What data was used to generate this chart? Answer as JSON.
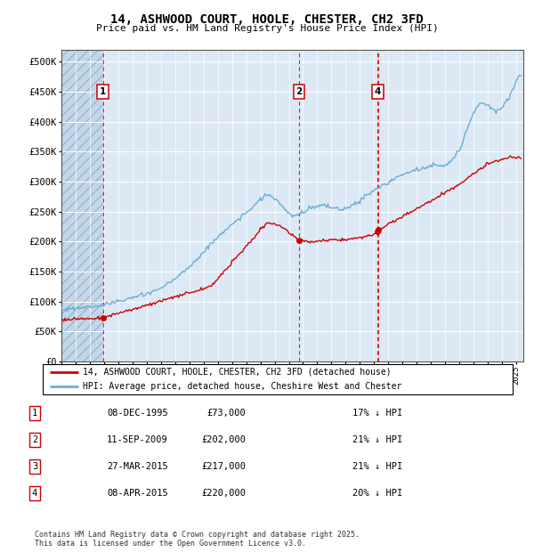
{
  "title": "14, ASHWOOD COURT, HOOLE, CHESTER, CH2 3FD",
  "subtitle": "Price paid vs. HM Land Registry's House Price Index (HPI)",
  "hpi_color": "#6baed6",
  "price_color": "#cc0000",
  "background_color": "#dce9f5",
  "ylim": [
    0,
    520000
  ],
  "yticks": [
    0,
    50000,
    100000,
    150000,
    200000,
    250000,
    300000,
    350000,
    400000,
    450000,
    500000
  ],
  "ytick_labels": [
    "£0",
    "£50K",
    "£100K",
    "£150K",
    "£200K",
    "£250K",
    "£300K",
    "£350K",
    "£400K",
    "£450K",
    "£500K"
  ],
  "hpi_anchors_t": [
    1993.0,
    1994.0,
    1995.0,
    1996.0,
    1997.0,
    1998.0,
    1999.0,
    2000.0,
    2001.0,
    2002.0,
    2003.0,
    2004.0,
    2005.0,
    2006.0,
    2007.0,
    2007.5,
    2008.0,
    2008.5,
    2009.0,
    2009.5,
    2010.0,
    2010.5,
    2011.0,
    2011.5,
    2012.0,
    2012.5,
    2013.0,
    2013.5,
    2014.0,
    2014.5,
    2015.0,
    2015.5,
    2016.0,
    2016.5,
    2017.0,
    2017.5,
    2018.0,
    2018.5,
    2019.0,
    2019.5,
    2020.0,
    2020.5,
    2021.0,
    2021.5,
    2022.0,
    2022.5,
    2023.0,
    2023.5,
    2024.0,
    2024.5,
    2025.2
  ],
  "hpi_anchors_v": [
    87000,
    89000,
    91000,
    95000,
    100000,
    106000,
    113000,
    122000,
    138000,
    158000,
    182000,
    208000,
    228000,
    248000,
    270000,
    278000,
    272000,
    260000,
    245000,
    242000,
    250000,
    257000,
    258000,
    260000,
    257000,
    254000,
    256000,
    261000,
    268000,
    278000,
    285000,
    292000,
    298000,
    306000,
    312000,
    316000,
    320000,
    322000,
    325000,
    328000,
    326000,
    335000,
    355000,
    385000,
    415000,
    432000,
    428000,
    418000,
    422000,
    440000,
    478000
  ],
  "price_anchors_t": [
    1993.0,
    1995.92,
    2003.5,
    2007.5,
    2008.5,
    2009.7,
    2010.5,
    2013.5,
    2014.8,
    2015.21,
    2015.3,
    2018.0,
    2021.0,
    2023.0,
    2024.5,
    2025.2
  ],
  "price_anchors_v": [
    70000,
    73000,
    125000,
    232000,
    225000,
    202000,
    200000,
    205000,
    210000,
    217000,
    220000,
    255000,
    295000,
    330000,
    340000,
    340000
  ],
  "trans_t": [
    1995.92,
    2009.71,
    2015.23,
    2015.27
  ],
  "trans_v": [
    73000,
    202000,
    217000,
    220000
  ],
  "trans_labels": [
    "1",
    "2",
    "3",
    "4"
  ],
  "shown_label_idx": [
    0,
    1,
    3
  ],
  "legend_line1": "14, ASHWOOD COURT, HOOLE, CHESTER, CH2 3FD (detached house)",
  "legend_line2": "HPI: Average price, detached house, Cheshire West and Chester",
  "table_rows": [
    [
      "1",
      "08-DEC-1995",
      "£73,000",
      "17% ↓ HPI"
    ],
    [
      "2",
      "11-SEP-2009",
      "£202,000",
      "21% ↓ HPI"
    ],
    [
      "3",
      "27-MAR-2015",
      "£217,000",
      "21% ↓ HPI"
    ],
    [
      "4",
      "08-APR-2015",
      "£220,000",
      "20% ↓ HPI"
    ]
  ],
  "footer": "Contains HM Land Registry data © Crown copyright and database right 2025.\nThis data is licensed under the Open Government Licence v3.0."
}
